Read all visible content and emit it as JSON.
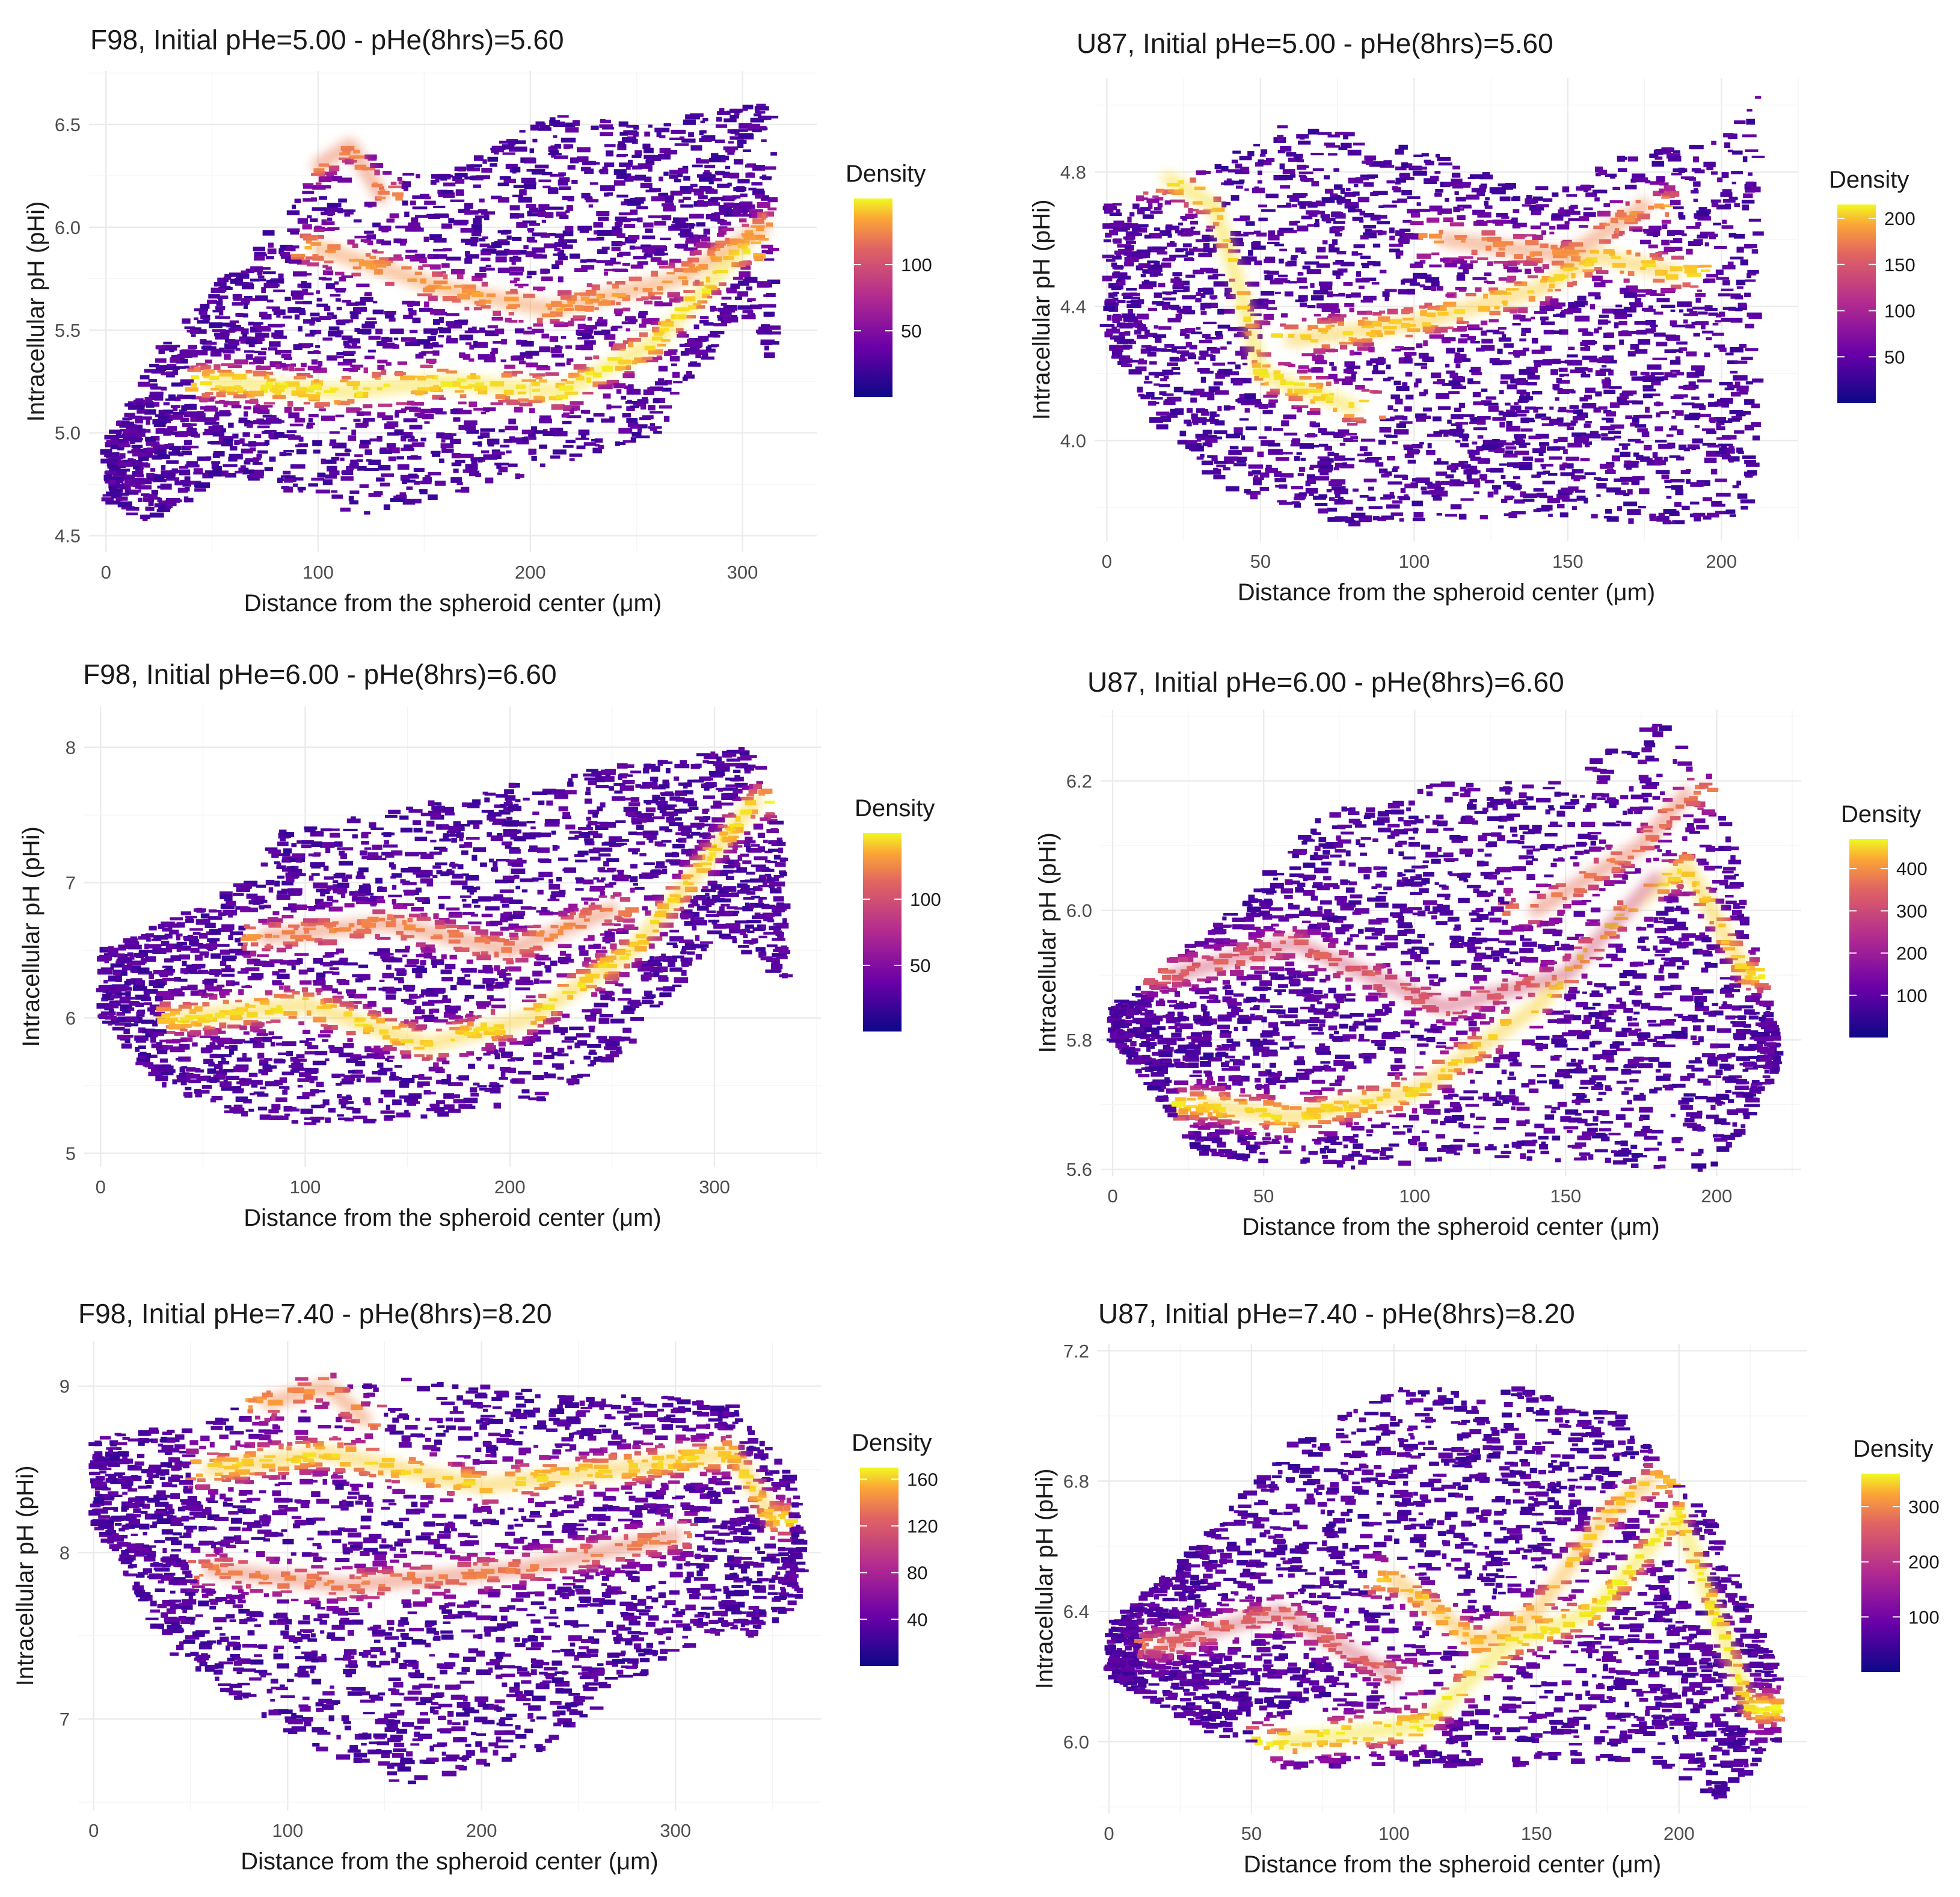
{
  "chart_data": [
    {
      "type": "heatmap",
      "title": "F98, Initial pHe=5.00 - pHe(8hrs)=5.60",
      "xlabel": "Distance from the spheroid center (μm)",
      "ylabel": "Intracellular pH (pHi)",
      "xlim": [
        -8,
        335
      ],
      "ylim": [
        4.42,
        6.76
      ],
      "xticks": [
        0,
        100,
        200,
        300
      ],
      "yticks": [
        4.5,
        5.0,
        5.5,
        6.0,
        6.5
      ],
      "legend_title": "Density",
      "legend_ticks": [
        50,
        100
      ],
      "legend_max": 150,
      "x_extent": [
        0,
        315
      ],
      "lower_edge": [
        [
          0,
          4.68
        ],
        [
          20,
          4.55
        ],
        [
          60,
          4.8
        ],
        [
          120,
          4.6
        ],
        [
          200,
          4.8
        ],
        [
          260,
          5.0
        ],
        [
          300,
          5.6
        ],
        [
          315,
          5.3
        ]
      ],
      "upper_edge": [
        [
          0,
          4.95
        ],
        [
          30,
          5.5
        ],
        [
          70,
          5.9
        ],
        [
          110,
          6.4
        ],
        [
          160,
          6.25
        ],
        [
          210,
          6.55
        ],
        [
          260,
          6.5
        ],
        [
          300,
          6.6
        ],
        [
          315,
          6.6
        ]
      ],
      "ridges": [
        {
          "points": [
            [
              50,
              5.25
            ],
            [
              110,
              5.2
            ],
            [
              160,
              5.25
            ],
            [
              215,
              5.2
            ],
            [
              260,
              5.45
            ],
            [
              300,
              5.9
            ]
          ],
          "density": 140
        },
        {
          "points": [
            [
              100,
              5.9
            ],
            [
              160,
              5.7
            ],
            [
              210,
              5.6
            ],
            [
              270,
              5.75
            ],
            [
              310,
              6.0
            ]
          ],
          "density": 110
        },
        {
          "points": [
            [
              100,
              6.3
            ],
            [
              115,
              6.4
            ],
            [
              130,
              6.15
            ]
          ],
          "density": 100
        }
      ]
    },
    {
      "type": "heatmap",
      "title": "U87, Initial pHe=5.00 - pHe(8hrs)=5.60",
      "xlabel": "Distance from the spheroid center (μm)",
      "ylabel": "Intracellular pH (pHi)",
      "xlim": [
        -4,
        225
      ],
      "ylim": [
        3.7,
        5.08
      ],
      "xticks": [
        0,
        50,
        100,
        150,
        200
      ],
      "yticks": [
        4.0,
        4.4,
        4.8
      ],
      "legend_title": "Density",
      "legend_ticks": [
        50,
        100,
        150,
        200
      ],
      "legend_max": 215,
      "x_extent": [
        0,
        212
      ],
      "lower_edge": [
        [
          0,
          4.3
        ],
        [
          20,
          4.0
        ],
        [
          40,
          3.85
        ],
        [
          80,
          3.75
        ],
        [
          140,
          3.78
        ],
        [
          180,
          3.75
        ],
        [
          210,
          3.78
        ]
      ],
      "upper_edge": [
        [
          0,
          4.7
        ],
        [
          30,
          4.8
        ],
        [
          60,
          4.95
        ],
        [
          100,
          4.88
        ],
        [
          140,
          4.75
        ],
        [
          170,
          4.85
        ],
        [
          200,
          4.9
        ],
        [
          212,
          5.05
        ]
      ],
      "ridges": [
        {
          "points": [
            [
              20,
              4.78
            ],
            [
              35,
              4.7
            ],
            [
              45,
              4.4
            ],
            [
              50,
              4.2
            ],
            [
              80,
              4.1
            ]
          ],
          "density": 200
        },
        {
          "points": [
            [
              60,
              4.3
            ],
            [
              100,
              4.35
            ],
            [
              140,
              4.45
            ],
            [
              160,
              4.55
            ],
            [
              185,
              4.5
            ]
          ],
          "density": 190
        },
        {
          "points": [
            [
              110,
              4.6
            ],
            [
              150,
              4.55
            ],
            [
              175,
              4.7
            ]
          ],
          "density": 150
        }
      ]
    },
    {
      "type": "heatmap",
      "title": "F98, Initial pHe=6.00 - pHe(8hrs)=6.60",
      "xlabel": "Distance from the spheroid center (μm)",
      "ylabel": "Intracellular pH (pHi)",
      "xlim": [
        -8,
        352
      ],
      "ylim": [
        4.9,
        8.3
      ],
      "xticks": [
        0,
        100,
        200,
        300
      ],
      "yticks": [
        5,
        6,
        7,
        8
      ],
      "legend_title": "Density",
      "legend_ticks": [
        50,
        100
      ],
      "legend_max": 150,
      "x_extent": [
        0,
        335
      ],
      "lower_edge": [
        [
          0,
          6.0
        ],
        [
          30,
          5.5
        ],
        [
          80,
          5.2
        ],
        [
          150,
          5.25
        ],
        [
          220,
          5.4
        ],
        [
          260,
          5.8
        ],
        [
          300,
          6.6
        ],
        [
          330,
          6.3
        ]
      ],
      "upper_edge": [
        [
          0,
          6.5
        ],
        [
          60,
          6.9
        ],
        [
          90,
          7.4
        ],
        [
          150,
          7.55
        ],
        [
          220,
          7.8
        ],
        [
          270,
          7.9
        ],
        [
          320,
          8.0
        ],
        [
          335,
          7.2
        ]
      ],
      "ridges": [
        {
          "points": [
            [
              40,
              6.0
            ],
            [
              100,
              6.1
            ],
            [
              160,
              5.8
            ],
            [
              210,
              6.0
            ],
            [
              260,
              6.5
            ],
            [
              320,
              7.6
            ]
          ],
          "density": 135
        },
        {
          "points": [
            [
              80,
              6.6
            ],
            [
              140,
              6.7
            ],
            [
              200,
              6.5
            ],
            [
              250,
              6.8
            ]
          ],
          "density": 100
        }
      ]
    },
    {
      "type": "heatmap",
      "title": "U87, Initial pHe=6.00 - pHe(8hrs)=6.60",
      "xlabel": "Distance from the spheroid center (μm)",
      "ylabel": "Intracellular pH (pHi)",
      "xlim": [
        -4,
        228
      ],
      "ylim": [
        5.59,
        6.31
      ],
      "xticks": [
        0,
        50,
        100,
        150,
        200
      ],
      "yticks": [
        5.6,
        5.8,
        6.0,
        6.2
      ],
      "legend_title": "Density",
      "legend_ticks": [
        100,
        200,
        300,
        400
      ],
      "legend_max": 470,
      "x_extent": [
        0,
        220
      ],
      "lower_edge": [
        [
          0,
          5.8
        ],
        [
          30,
          5.62
        ],
        [
          80,
          5.6
        ],
        [
          130,
          5.62
        ],
        [
          175,
          5.6
        ],
        [
          200,
          5.6
        ],
        [
          220,
          5.75
        ]
      ],
      "upper_edge": [
        [
          0,
          5.85
        ],
        [
          40,
          6.0
        ],
        [
          70,
          6.15
        ],
        [
          110,
          6.2
        ],
        [
          150,
          6.2
        ],
        [
          180,
          6.3
        ],
        [
          200,
          6.2
        ],
        [
          220,
          5.8
        ]
      ],
      "ridges": [
        {
          "points": [
            [
              30,
              5.7
            ],
            [
              60,
              5.68
            ],
            [
              100,
              5.72
            ],
            [
              140,
              5.85
            ],
            [
              170,
              6.0
            ],
            [
              190,
              6.07
            ],
            [
              210,
              5.9
            ]
          ],
          "density": 420
        },
        {
          "points": [
            [
              20,
              5.9
            ],
            [
              60,
              5.95
            ],
            [
              110,
              5.85
            ],
            [
              150,
              5.9
            ],
            [
              180,
              6.05
            ]
          ],
          "density": 250
        },
        {
          "points": [
            [
              140,
              6.0
            ],
            [
              175,
              6.1
            ],
            [
              190,
              6.18
            ]
          ],
          "density": 300
        }
      ]
    },
    {
      "type": "heatmap",
      "title": "F98, Initial pHe=7.40 - pHe(8hrs)=8.20",
      "xlabel": "Distance from the spheroid center (μm)",
      "ylabel": "Intracellular pH (pHi)",
      "xlim": [
        -8,
        375
      ],
      "ylim": [
        6.45,
        9.27
      ],
      "xticks": [
        0,
        100,
        200,
        300
      ],
      "yticks": [
        7,
        8,
        9
      ],
      "legend_title": "Density",
      "legend_ticks": [
        40,
        80,
        120,
        160
      ],
      "legend_max": 170,
      "x_extent": [
        0,
        365
      ],
      "lower_edge": [
        [
          0,
          8.2
        ],
        [
          40,
          7.4
        ],
        [
          100,
          6.9
        ],
        [
          160,
          6.6
        ],
        [
          230,
          6.8
        ],
        [
          300,
          7.4
        ],
        [
          340,
          7.5
        ],
        [
          365,
          7.7
        ]
      ],
      "upper_edge": [
        [
          0,
          8.7
        ],
        [
          60,
          8.8
        ],
        [
          110,
          9.1
        ],
        [
          200,
          9.0
        ],
        [
          280,
          8.95
        ],
        [
          330,
          8.9
        ],
        [
          365,
          8.4
        ]
      ],
      "ridges": [
        {
          "points": [
            [
              60,
              8.5
            ],
            [
              120,
              8.6
            ],
            [
              200,
              8.4
            ],
            [
              270,
              8.5
            ],
            [
              330,
              8.6
            ],
            [
              350,
              8.2
            ]
          ],
          "density": 150
        },
        {
          "points": [
            [
              60,
              7.9
            ],
            [
              130,
              7.8
            ],
            [
              220,
              7.9
            ],
            [
              300,
              8.1
            ]
          ],
          "density": 110
        },
        {
          "points": [
            [
              90,
              8.9
            ],
            [
              120,
              9.0
            ],
            [
              140,
              8.8
            ]
          ],
          "density": 120
        }
      ]
    },
    {
      "type": "heatmap",
      "title": "U87, Initial pHe=7.40 - pHe(8hrs)=8.20",
      "xlabel": "Distance from the spheroid center (μm)",
      "ylabel": "Intracellular pH (pHi)",
      "xlim": [
        -4,
        245
      ],
      "ylim": [
        5.78,
        7.22
      ],
      "xticks": [
        0,
        50,
        100,
        150,
        200
      ],
      "yticks": [
        6.0,
        6.4,
        6.8,
        7.2
      ],
      "legend_title": "Density",
      "legend_ticks": [
        100,
        200,
        300
      ],
      "legend_max": 360,
      "x_extent": [
        0,
        235
      ],
      "lower_edge": [
        [
          0,
          6.2
        ],
        [
          30,
          6.05
        ],
        [
          60,
          5.92
        ],
        [
          100,
          5.92
        ],
        [
          150,
          5.93
        ],
        [
          190,
          5.95
        ],
        [
          215,
          5.82
        ],
        [
          235,
          6.0
        ]
      ],
      "upper_edge": [
        [
          0,
          6.35
        ],
        [
          30,
          6.6
        ],
        [
          60,
          6.9
        ],
        [
          100,
          7.08
        ],
        [
          140,
          7.1
        ],
        [
          180,
          7.0
        ],
        [
          210,
          6.7
        ],
        [
          235,
          6.2
        ]
      ],
      "ridges": [
        {
          "points": [
            [
              60,
              6.0
            ],
            [
              110,
              6.05
            ],
            [
              140,
              6.3
            ],
            [
              170,
              6.4
            ],
            [
              200,
              6.7
            ],
            [
              225,
              6.1
            ]
          ],
          "density": 340
        },
        {
          "points": [
            [
              100,
              6.5
            ],
            [
              130,
              6.3
            ],
            [
              150,
              6.4
            ],
            [
              175,
              6.7
            ],
            [
              190,
              6.8
            ]
          ],
          "density": 300
        },
        {
          "points": [
            [
              20,
              6.3
            ],
            [
              60,
              6.4
            ],
            [
              100,
              6.2
            ]
          ],
          "density": 200
        }
      ]
    }
  ]
}
